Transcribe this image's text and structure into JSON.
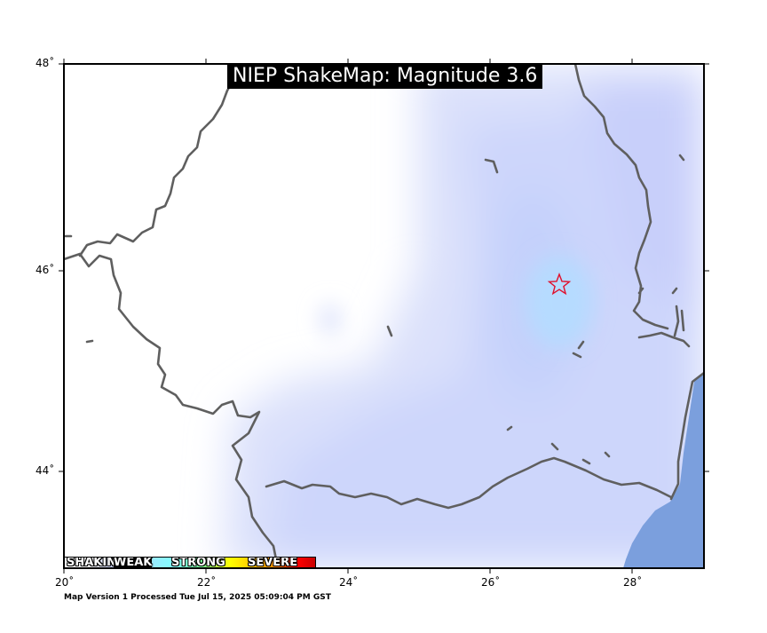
{
  "map": {
    "title": "NIEP ShakeMap: Magnitude 3.6",
    "longitude_labels": [
      "20˚",
      "22˚",
      "24˚",
      "26˚",
      "28˚"
    ],
    "latitude_labels": [
      "48˚",
      "46˚",
      "44˚"
    ],
    "lon_range": [
      20,
      29
    ],
    "lat_range": [
      43,
      48
    ],
    "epicenter": {
      "lon": 27.0,
      "lat": 45.85,
      "marker": "star-icon",
      "color": "#e0102c"
    },
    "legend": {
      "items": [
        "SHAKING",
        "WEAK",
        "STRONG",
        "SEVERE"
      ]
    },
    "version_note": "Map Version 1 Processed Tue Jul 15, 2025 05:09:04 PM GST",
    "colors": {
      "border": "#5f5f5f",
      "sea": "#7b9fdd",
      "shaking_weak": "#ccd7ff",
      "shaking_core": "#b4dcff"
    }
  }
}
